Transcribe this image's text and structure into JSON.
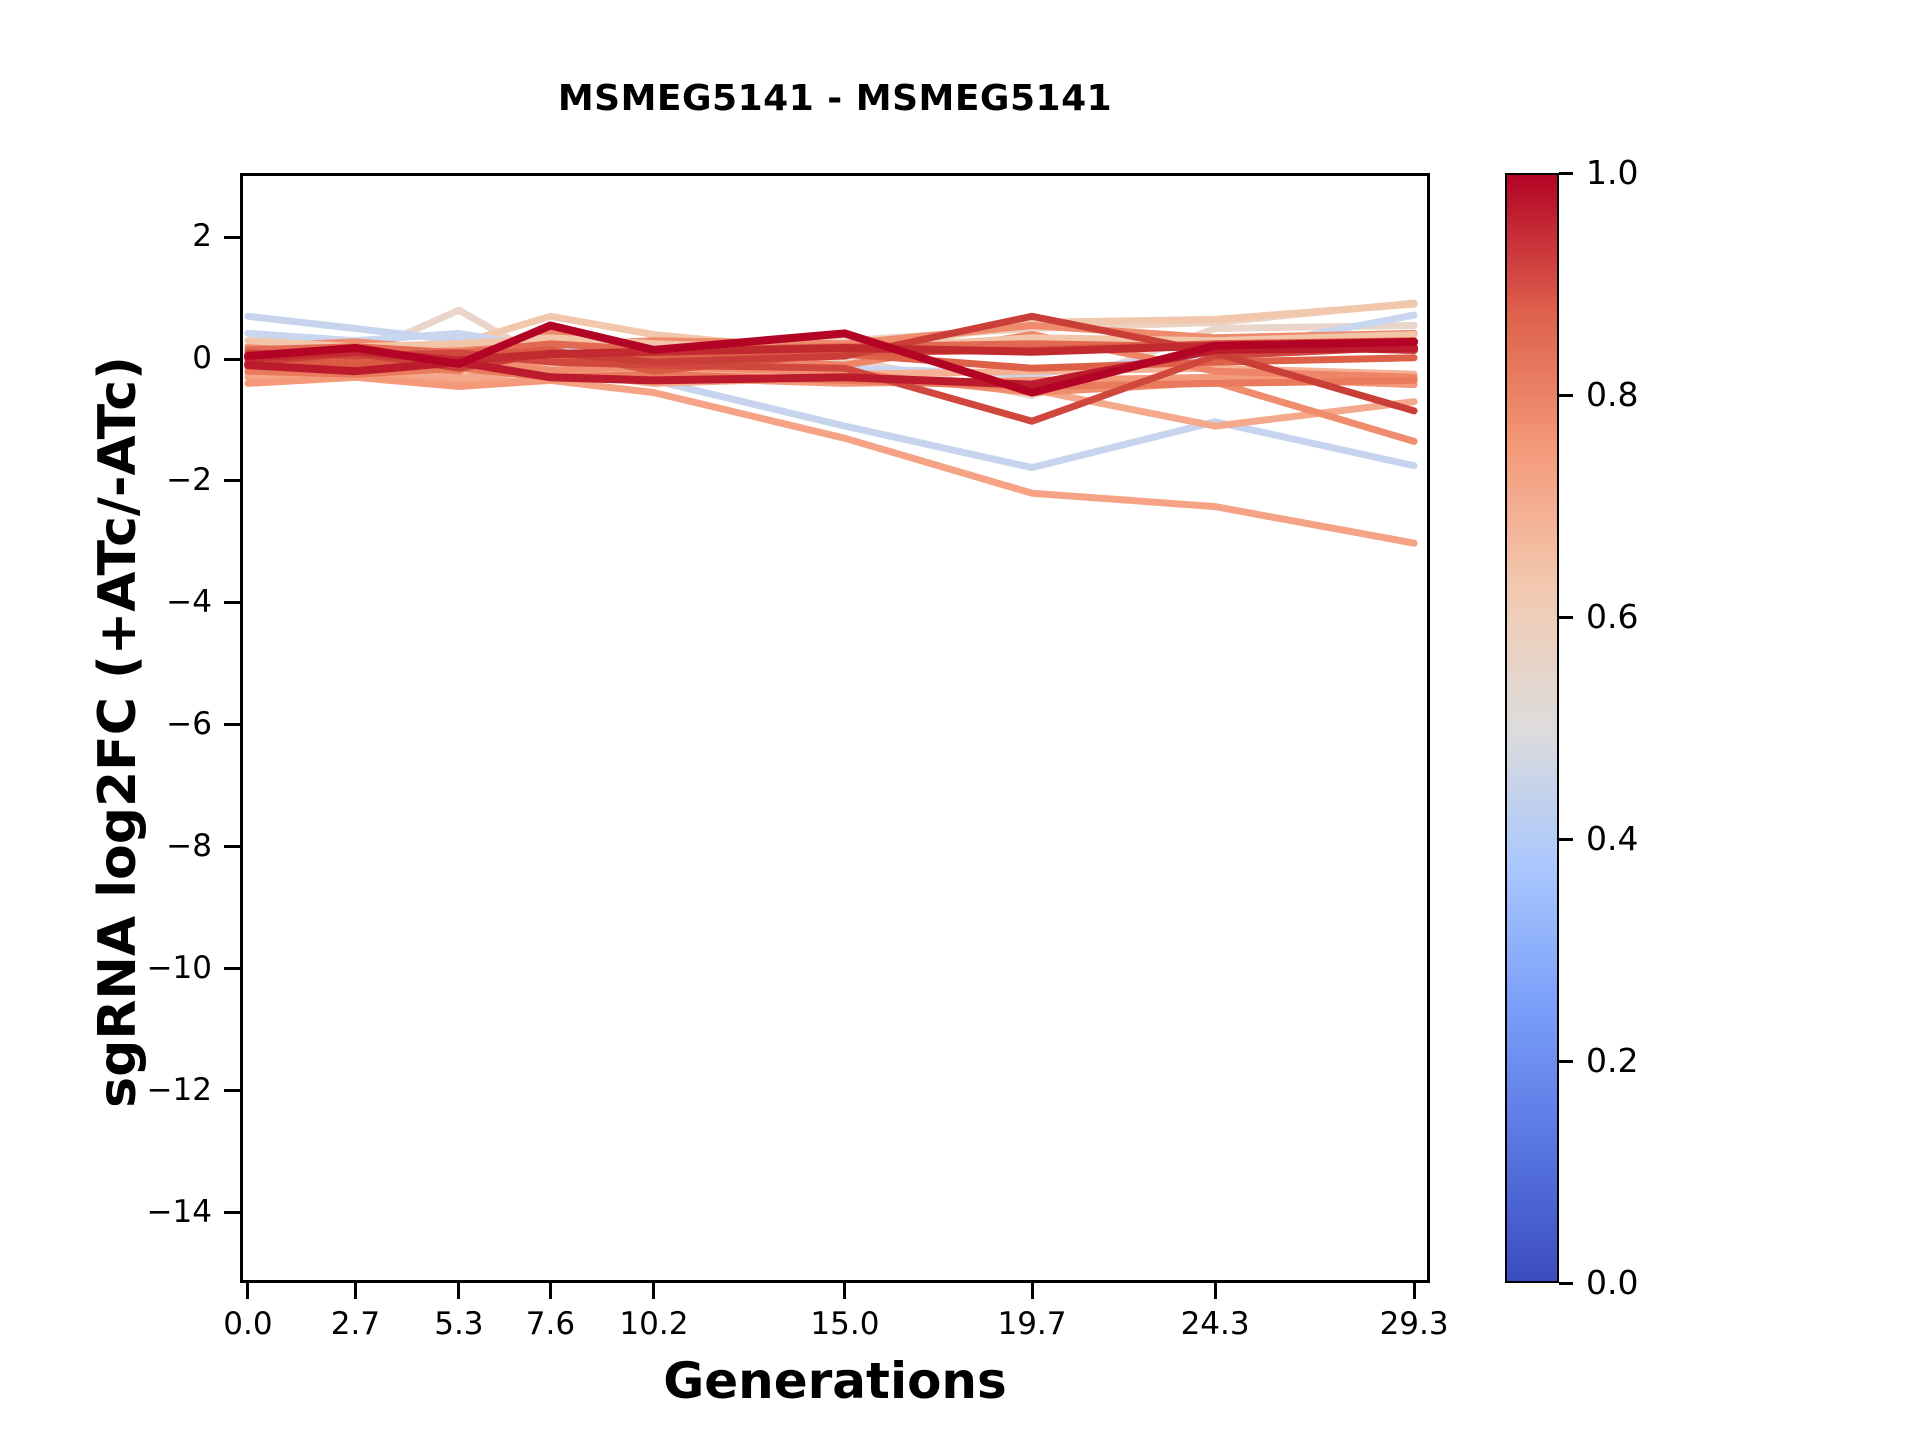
{
  "figure": {
    "title": "MSMEG5141 - MSMEG5141",
    "xlabel": "Generations",
    "ylabel": "sgRNA log2FC (+ATc/-ATc)"
  },
  "chart_data": {
    "type": "line",
    "title": "MSMEG5141 - MSMEG5141",
    "xlabel": "Generations",
    "ylabel": "sgRNA log2FC (+ATc/-ATc)",
    "grid": false,
    "x": [
      0.0,
      2.7,
      5.3,
      7.6,
      10.2,
      15.0,
      19.7,
      24.3,
      29.3
    ],
    "x_tick_labels": [
      "0.0",
      "2.7",
      "5.3",
      "7.6",
      "10.2",
      "15.0",
      "19.7",
      "24.3",
      "29.3"
    ],
    "y_ticks": [
      2,
      0,
      -2,
      -4,
      -6,
      -8,
      -10,
      -12,
      -14
    ],
    "y_tick_labels": [
      "2",
      "0",
      "−2",
      "−4",
      "−6",
      "−8",
      "−10",
      "−12",
      "−14"
    ],
    "xlim": [
      -0.2,
      29.7
    ],
    "ylim": [
      -15.15,
      3.05
    ],
    "series": [
      {
        "colormap_value": 0.56,
        "color": "#e9d5c9",
        "values": [
          0.0,
          0.05,
          0.8,
          -0.05,
          0.05,
          0.0,
          -0.6,
          0.5,
          0.55
        ]
      },
      {
        "colormap_value": 0.58,
        "color": "#ecd2c2",
        "values": [
          0.1,
          0.15,
          0.05,
          0.1,
          0.15,
          0.3,
          0.5,
          0.6,
          0.92
        ]
      },
      {
        "colormap_value": 0.62,
        "color": "#f2c8ad",
        "values": [
          0.2,
          0.1,
          0.25,
          0.7,
          0.4,
          0.1,
          0.6,
          0.65,
          0.9
        ]
      },
      {
        "colormap_value": 0.45,
        "color": "#c6d4ee",
        "values": [
          0.7,
          0.5,
          0.3,
          0.05,
          -0.35,
          -1.1,
          -1.78,
          -1.03,
          -1.75
        ]
      },
      {
        "colormap_value": 0.46,
        "color": "#c9d6ef",
        "values": [
          0.42,
          0.3,
          0.42,
          0.18,
          0.05,
          -0.15,
          -0.25,
          0.1,
          0.72
        ]
      },
      {
        "colormap_value": 0.68,
        "color": "#f6b194",
        "values": [
          -0.1,
          -0.2,
          -0.08,
          -0.25,
          -0.15,
          -0.25,
          -0.2,
          -0.15,
          -0.25
        ]
      },
      {
        "colormap_value": 0.72,
        "color": "#f5a285",
        "values": [
          -0.3,
          -0.28,
          -0.38,
          -0.35,
          -0.55,
          -1.3,
          -2.2,
          -2.42,
          -3.02
        ]
      },
      {
        "colormap_value": 0.7,
        "color": "#f4a98c",
        "values": [
          -0.25,
          -0.15,
          -0.3,
          -0.2,
          -0.4,
          -0.3,
          -0.5,
          -1.1,
          -0.7
        ]
      },
      {
        "colormap_value": 0.78,
        "color": "#f18d6f",
        "values": [
          0.08,
          -0.12,
          0.03,
          -0.18,
          -0.12,
          -0.22,
          -0.55,
          -0.38,
          -1.35
        ]
      },
      {
        "colormap_value": 0.75,
        "color": "#f49a7b",
        "values": [
          -0.4,
          -0.3,
          -0.45,
          -0.35,
          -0.3,
          -0.4,
          -0.35,
          -0.3,
          -0.42
        ]
      },
      {
        "colormap_value": 0.8,
        "color": "#ee8468",
        "values": [
          -0.15,
          -0.05,
          -0.2,
          0.45,
          0.05,
          -0.1,
          0.4,
          -0.2,
          -0.3
        ]
      },
      {
        "colormap_value": 0.78,
        "color": "#f08a6c",
        "values": [
          0.2,
          0.28,
          0.15,
          0.22,
          0.3,
          0.25,
          0.55,
          0.35,
          0.42
        ]
      },
      {
        "colormap_value": 0.62,
        "color": "#f3c5a8",
        "values": [
          0.3,
          0.2,
          0.25,
          0.35,
          0.25,
          0.15,
          0.35,
          0.3,
          0.4
        ]
      },
      {
        "colormap_value": 0.82,
        "color": "#e97a5c",
        "values": [
          -0.2,
          -0.25,
          -0.15,
          -0.3,
          -0.25,
          -0.35,
          -0.45,
          -0.4,
          -0.35
        ]
      },
      {
        "colormap_value": 0.85,
        "color": "#e26952",
        "values": [
          0.15,
          0.2,
          0.1,
          0.25,
          0.15,
          0.2,
          0.25,
          0.2,
          0.25
        ]
      },
      {
        "colormap_value": 0.87,
        "color": "#dd6047",
        "values": [
          0.05,
          -0.05,
          0.08,
          -0.02,
          0.05,
          0.08,
          -0.15,
          -0.05,
          0.02
        ]
      },
      {
        "colormap_value": 0.88,
        "color": "#da5a43",
        "values": [
          0.0,
          -0.1,
          0.05,
          0.15,
          -0.2,
          0.1,
          0.15,
          0.25,
          0.3
        ]
      },
      {
        "colormap_value": 0.9,
        "color": "#d0473d",
        "values": [
          0.1,
          0.05,
          0.1,
          -0.05,
          -0.1,
          -0.15,
          -1.02,
          0.05,
          0.2
        ]
      },
      {
        "colormap_value": 0.92,
        "color": "#ca3e38",
        "values": [
          -0.05,
          0.1,
          -0.15,
          0.1,
          -0.05,
          0.05,
          0.7,
          0.1,
          -0.85
        ]
      },
      {
        "colormap_value": 0.95,
        "color": "#c12b30",
        "values": [
          0.02,
          0.12,
          -0.02,
          0.08,
          0.12,
          0.18,
          0.12,
          0.22,
          0.15
        ]
      },
      {
        "colormap_value": 0.97,
        "color": "#bb1b2c",
        "values": [
          -0.1,
          -0.2,
          -0.05,
          -0.3,
          -0.35,
          -0.3,
          -0.42,
          0.15,
          0.18
        ]
      },
      {
        "colormap_value": 1.0,
        "color": "#b40426",
        "values": [
          0.05,
          0.18,
          -0.08,
          0.55,
          0.15,
          0.42,
          -0.55,
          0.22,
          0.28
        ]
      }
    ],
    "colorbar": {
      "tick_labels": [
        "1.0",
        "0.8",
        "0.6",
        "0.4",
        "0.2",
        "0.0"
      ],
      "tick_values": [
        1.0,
        0.8,
        0.6,
        0.4,
        0.2,
        0.0
      ],
      "colormap": "coolwarm",
      "gradient_stops": [
        [
          0.0,
          "#3b4cc0"
        ],
        [
          0.125,
          "#5977e3"
        ],
        [
          0.25,
          "#7b9ff9"
        ],
        [
          0.375,
          "#aac7fd"
        ],
        [
          0.5,
          "#dddcdb"
        ],
        [
          0.625,
          "#f2cab1"
        ],
        [
          0.75,
          "#f49a7b"
        ],
        [
          0.875,
          "#de614d"
        ],
        [
          1.0,
          "#b40426"
        ]
      ]
    }
  }
}
